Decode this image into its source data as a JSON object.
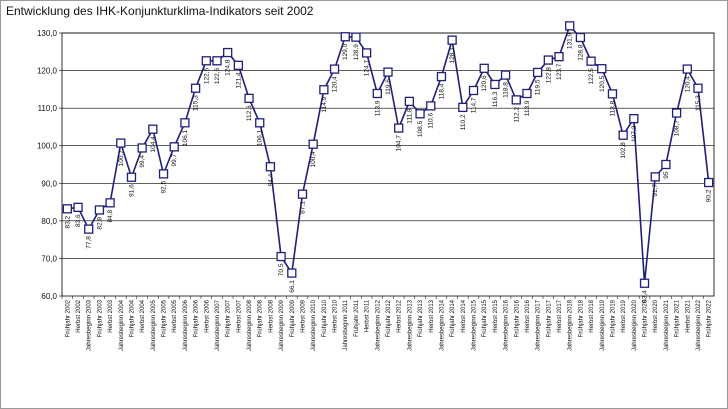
{
  "chart_data": {
    "type": "line",
    "title": "Entwicklung des IHK-Konjunkturklima-Indikators  seit 2002",
    "xlabel": "",
    "ylabel": "",
    "ylim": [
      60,
      130
    ],
    "yticks": [
      "60,0",
      "70,0",
      "80,0",
      "90,0",
      "100,0",
      "110,0",
      "120,0",
      "130,0"
    ],
    "grid": true,
    "legend": "none",
    "line_color": "#1f1f7a",
    "marker_color": "#1f1f7a",
    "x": [
      "Frühjahr 2002",
      "Herbst 2002",
      "Jahresbeginn 2003",
      "Frühjahr 2003",
      "Herbst 2003",
      "Jahresbeginn 2004",
      "Frühjahr 2004",
      "Herbst 2004",
      "Jahresbeginn 2005",
      "Frühjahr 2005",
      "Herbst 2005",
      "Jahresbeginn 2006",
      "Frühjahr 2006",
      "Herbst 2006",
      "Jahresbeginn 2007",
      "Frühjahr 2007",
      "Herbst 2007",
      "Jahresbeginn 2008",
      "Frühjahr 2008",
      "Herbst 2008",
      "Jahresbeginn 2009",
      "Frühjahr 2009",
      "Herbst 2009",
      "Jahresbeginn 2010",
      "Frühjahr 2010",
      "Herbst 2010",
      "Jahresbeginn 2011",
      "Frühjahr 2011",
      "Herbst 2011",
      "Jahresbeginn 2012",
      "Frühjahr 2012",
      "Herbst 2012",
      "Jahresbeginn 2013",
      "Frühjahr 2013",
      "Herbst 2013",
      "Jahresbeginn 2014",
      "Frühjahr 2014",
      "Herbst 2014",
      "Jahresbeginn 2015",
      "Frühjahr 2015",
      "Herbst 2015",
      "Jahresbeginn 2016",
      "Frühjahr 2016",
      "Herbst 2016",
      "Jahresbeginn 2017",
      "Frühjahr 2017",
      "Herbst 2017",
      "Jahresbeginn 2018",
      "Frühjahr 2018",
      "Herbst 2018",
      "Jahresbeginn 2019",
      "Frühjahr 2019",
      "Herbst 2019",
      "Jahresbeginn 2020",
      "Frühjahr 2020",
      "Herbst 2020",
      "Jahresbeginn 2021",
      "Frühjahr 2021",
      "Herbst 2021",
      "Jahresbeginn 2022",
      "Frühjahr 2022"
    ],
    "values": [
      83.2,
      83.6,
      77.8,
      82.9,
      84.8,
      100.7,
      91.6,
      99.4,
      104.4,
      92.5,
      99.7,
      106.1,
      115.3,
      122.6,
      122.6,
      124.8,
      121.4,
      112.6,
      106.1,
      94.4,
      70.5,
      66.1,
      87.1,
      100.4,
      114.9,
      120.4,
      129.0,
      128.9,
      124.7,
      113.9,
      119.6,
      104.7,
      111.8,
      108.5,
      110.6,
      118.4,
      128.1,
      110.2,
      114.7,
      120.6,
      116.3,
      118.8,
      112.2,
      113.9,
      119.5,
      122.8,
      123.7,
      131.9,
      128.8,
      122.5,
      120.5,
      113.8,
      102.8,
      107.2,
      63.4,
      91.7,
      95.0,
      108.7,
      120.4,
      115.3,
      90.2
    ],
    "labels": [
      "83,2",
      "83,6",
      "77,8",
      "82,9",
      "84,8",
      "100,7",
      "91,6",
      "99,4",
      "104,4",
      "92,5",
      "99,7",
      "106,1",
      "115,3",
      "122,6",
      "122,6",
      "124,8",
      "121,4",
      "112,6",
      "106,1",
      "94,4",
      "70,5",
      "66,1",
      "87,1",
      "100,4",
      "114,9",
      "120,4",
      "129,0",
      "128,9",
      "124,7",
      "113,9",
      "119,6",
      "104,7",
      "111,8",
      "108,5",
      "110,6",
      "118,4",
      "128,1",
      "110,2",
      "114,7",
      "120,6",
      "116,3",
      "118,8",
      "112,2",
      "113,9",
      "119,5",
      "122,8",
      "123,7",
      "131,9",
      "128,8",
      "122,5",
      "120,5",
      "113,8",
      "102,8",
      "107,2",
      "63,4",
      "91,7",
      "95",
      "108,7",
      "120,4",
      "115,3",
      "90,2"
    ]
  }
}
